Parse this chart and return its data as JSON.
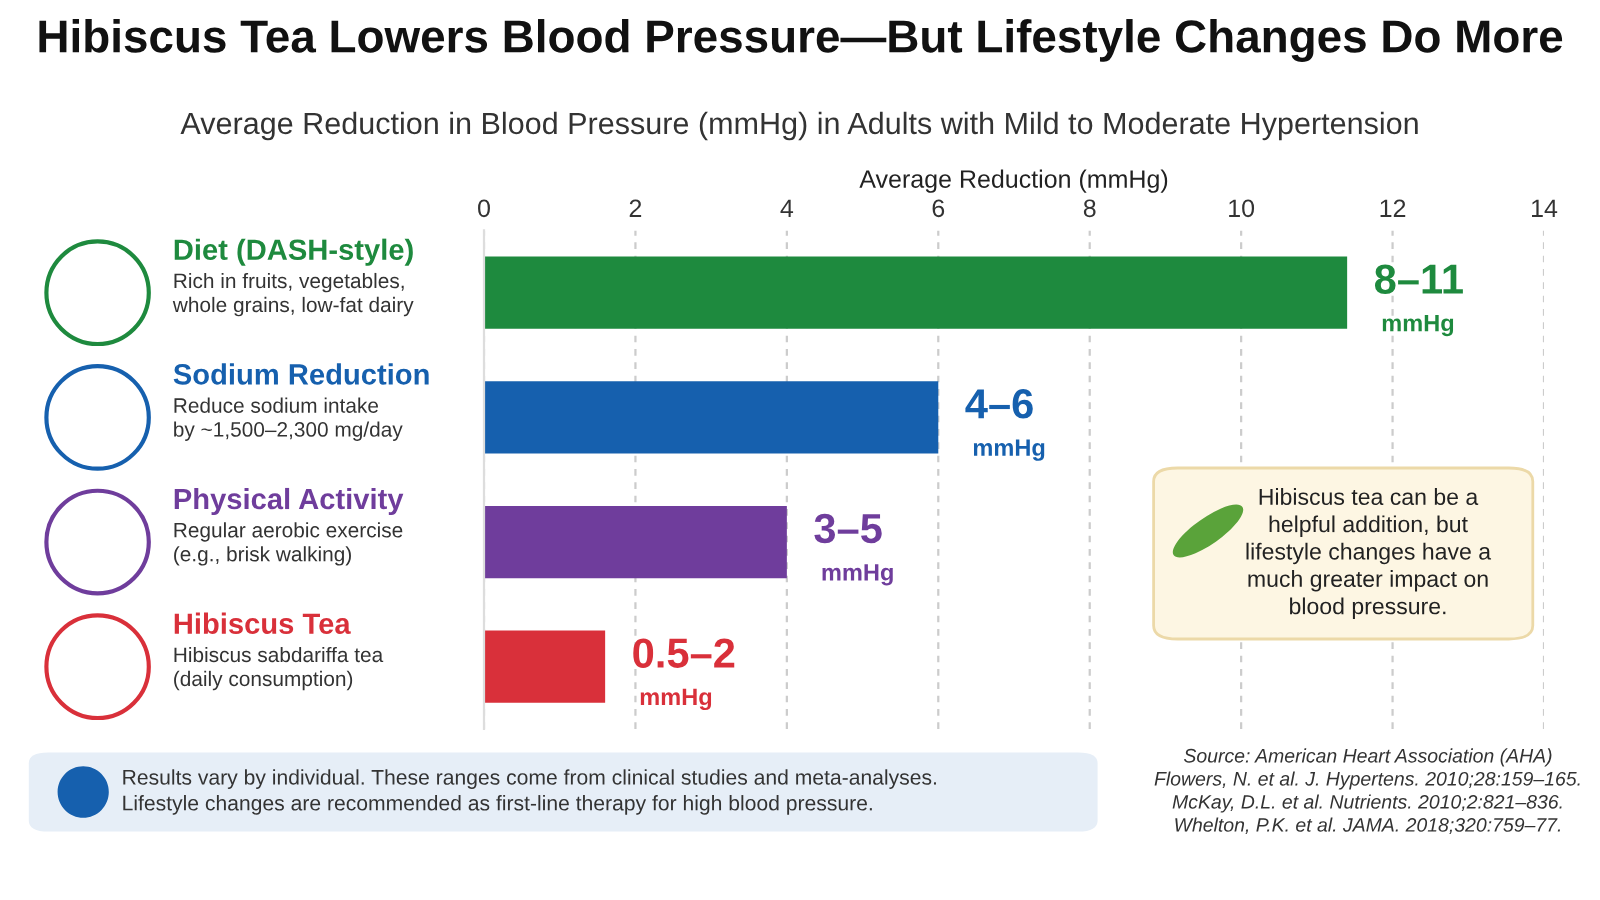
{
  "chart_data": {
    "type": "bar",
    "orientation": "horizontal",
    "title": "Hibiscus Tea Lowers Blood Pressure—But Lifestyle Changes Do More",
    "subtitle": "Average Reduction in Blood Pressure (mmHg) in Adults with Mild to Moderate Hypertension",
    "xlabel": "Average Reduction (mmHg)",
    "categories": [
      "Diet (DASH-style)\nRich in fruits, vegetables,\nwhole grains, low-fat dairy",
      "Sodium Reduction\nReduce sodium intake\nby ~1,500–2,300 mg/day",
      "Physical Activity\nRegular aerobic exercise\n(e.g., brisk walking)",
      "Hibiscus Tea\nHibiscus sabdariffa tea\n(daily consumption)"
    ],
    "values": [
      11.4,
      6.0,
      4.0,
      1.6
    ],
    "colors": [
      "#1e8a3e",
      "#1660ae",
      "#6f3d9c",
      "#d9303a"
    ],
    "value_labels": [
      "8–11\nmmHg",
      "4–6\nmmHg",
      "3–5\nmmHg",
      "0.5–2\nmmHg"
    ],
    "xlim": [
      0,
      14
    ],
    "xticks": [
      0,
      2,
      4,
      6,
      8,
      10,
      12,
      14
    ],
    "grid": "x",
    "annotations": [
      "Hibiscus tea can be a\nhelpful addition, but\nlifestyle changes have a\nmuch greater impact on\nblood pressure.",
      "Results vary by individual. These ranges come from clinical studies and meta-analyses.\nLifestyle changes are recommended as first-line therapy for high blood pressure.",
      "Source: American Heart Association (AHA)\nFlowers, N. et al. J. Hypertens. 2010;28:159–165.\nMcKay, D.L. et al. Nutrients. 2010;2:821–836.\nWhelton, P.K. et al. JAMA. 2018;320:759–77."
    ]
  }
}
